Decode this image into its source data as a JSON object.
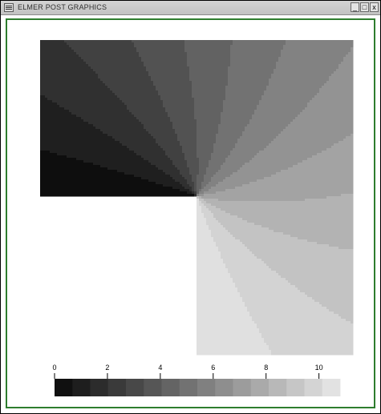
{
  "window": {
    "title": "ELMER POST GRAPHICS",
    "buttons": [
      {
        "name": "minimize",
        "glyph": "_"
      },
      {
        "name": "maximize",
        "glyph": "□"
      },
      {
        "name": "close",
        "glyph": "x"
      }
    ]
  },
  "colors": {
    "frame_border": "#2e7d2e",
    "titlebar": "#c8c8c8",
    "contour_levels": [
      "#0e0e0e",
      "#1f1f1f",
      "#303030",
      "#414141",
      "#525252",
      "#626262",
      "#727272",
      "#828282",
      "#939393",
      "#a3a3a3",
      "#b3b3b3",
      "#c3c3c3",
      "#d3d3d3",
      "#e0e0e0"
    ]
  },
  "colorbar": {
    "tick_labels": [
      "0",
      "2",
      "4",
      "6",
      "8",
      "10"
    ],
    "range": [
      0,
      10.8
    ],
    "bands": 16
  },
  "plot": {
    "description_shape": "L-shaped domain with re-entrant corner",
    "levels": 14
  }
}
